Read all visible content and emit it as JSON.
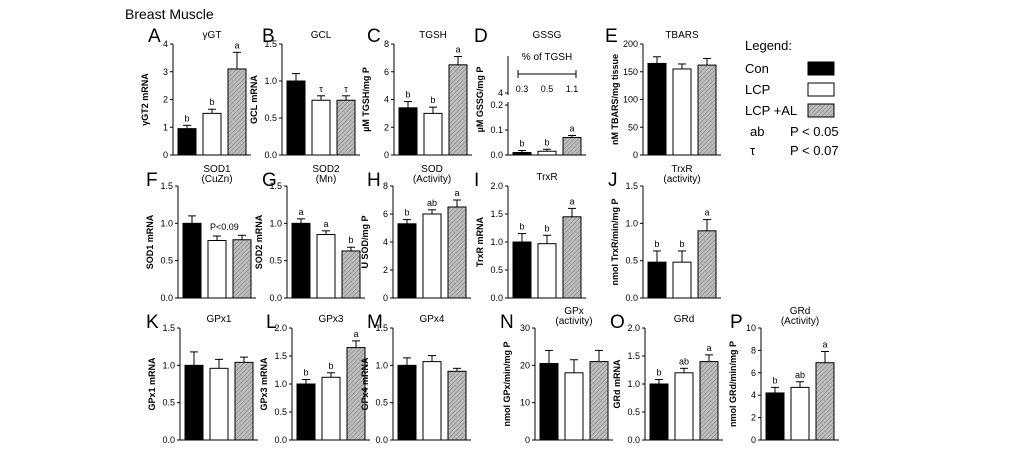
{
  "figure_title": "Breast Muscle",
  "legend": {
    "title": "Legend:",
    "entries": [
      {
        "label": "Con",
        "fill": "#000000"
      },
      {
        "label": "LCP",
        "fill": "#ffffff"
      },
      {
        "label": "LCP +AL",
        "fill": "#bdbdbd"
      }
    ],
    "significance": [
      {
        "symbol": "ab",
        "text": "P < 0.05"
      },
      {
        "symbol": "τ",
        "text": "P < 0.07"
      }
    ]
  },
  "chart_data": [
    {
      "id": "A",
      "type": "bar",
      "title": "γGT",
      "ylabel": "γGT2 mRNA",
      "ylim": [
        0,
        4
      ],
      "yticks": [
        "0",
        "1",
        "2",
        "3",
        "4"
      ],
      "categories": [
        "Con",
        "LCP",
        "LCP +AL"
      ],
      "values": [
        0.95,
        1.5,
        3.1
      ],
      "errors": [
        0.12,
        0.15,
        0.6
      ],
      "labels": [
        "b",
        "b",
        "a"
      ]
    },
    {
      "id": "B",
      "type": "bar",
      "title": "GCL",
      "ylabel": "GCL mRNA",
      "ylim": [
        0,
        1.5
      ],
      "yticks": [
        "0.0",
        "0.5",
        "1.0",
        "1.5"
      ],
      "categories": [
        "Con",
        "LCP",
        "LCP +AL"
      ],
      "values": [
        1.0,
        0.74,
        0.74
      ],
      "errors": [
        0.1,
        0.06,
        0.06
      ],
      "labels": [
        "",
        "τ",
        "τ"
      ]
    },
    {
      "id": "C",
      "type": "bar",
      "title": "TGSH",
      "ylabel": "µM TGSH/mg P",
      "ylim": [
        0,
        8
      ],
      "yticks": [
        "0",
        "2",
        "4",
        "6",
        "8"
      ],
      "categories": [
        "Con",
        "LCP",
        "LCP +AL"
      ],
      "values": [
        3.4,
        3.0,
        6.5
      ],
      "errors": [
        0.45,
        0.45,
        0.6
      ],
      "labels": [
        "b",
        "b",
        "a"
      ]
    },
    {
      "id": "D",
      "type": "bar",
      "title": "GSSG",
      "ylabel": "µM GSSG/mg P",
      "ylim": [
        0,
        5
      ],
      "yticks": [
        "0.0",
        "0.1",
        "0.2",
        "4"
      ],
      "categories": [
        "Con",
        "LCP",
        "LCP +AL"
      ],
      "values": [
        0.01,
        0.015,
        0.07
      ],
      "errors": [
        0.003,
        0.003,
        0.005
      ],
      "labels": [
        "b",
        "b",
        "a"
      ],
      "inset_label": "% of TGSH",
      "inset_values": [
        "0.3",
        "0.5",
        "1.1"
      ]
    },
    {
      "id": "E",
      "type": "bar",
      "title": "TBARS",
      "ylabel": "nM TBARS/mg tissue",
      "ylim": [
        0,
        200
      ],
      "yticks": [
        "0",
        "50",
        "100",
        "150",
        "200"
      ],
      "categories": [
        "Con",
        "LCP",
        "LCP +AL"
      ],
      "values": [
        165,
        155,
        162
      ],
      "errors": [
        12,
        9,
        12
      ],
      "labels": [
        "",
        "",
        ""
      ]
    },
    {
      "id": "F",
      "type": "bar",
      "title": "SOD1\n(CuZn)",
      "ylabel": "SOD1 mRNA",
      "ylim": [
        0,
        1.5
      ],
      "yticks": [
        "0.0",
        "0.5",
        "1.0",
        "1.5"
      ],
      "categories": [
        "Con",
        "LCP",
        "LCP +AL"
      ],
      "values": [
        1.0,
        0.77,
        0.78
      ],
      "errors": [
        0.1,
        0.06,
        0.06
      ],
      "labels": [
        "",
        "",
        ""
      ],
      "annotation": "P<0.09"
    },
    {
      "id": "G",
      "type": "bar",
      "title": "SOD2\n(Mn)",
      "ylabel": "SOD2 mRNA",
      "ylim": [
        0,
        1.5
      ],
      "yticks": [
        "0.0",
        "0.5",
        "1.0",
        "1.5"
      ],
      "categories": [
        "Con",
        "LCP",
        "LCP +AL"
      ],
      "values": [
        1.0,
        0.85,
        0.63
      ],
      "errors": [
        0.06,
        0.05,
        0.05
      ],
      "labels": [
        "a",
        "a",
        "b"
      ]
    },
    {
      "id": "H",
      "type": "bar",
      "title": "SOD\n(Activity)",
      "ylabel": "U SOD/mg P",
      "ylim": [
        0,
        8
      ],
      "yticks": [
        "0",
        "2",
        "4",
        "6",
        "8"
      ],
      "categories": [
        "Con",
        "LCP",
        "LCP +AL"
      ],
      "values": [
        5.3,
        6.0,
        6.5
      ],
      "errors": [
        0.3,
        0.3,
        0.5
      ],
      "labels": [
        "b",
        "ab",
        "a"
      ]
    },
    {
      "id": "I",
      "type": "bar",
      "title": "TrxR",
      "ylabel": "TrxR mRNA",
      "ylim": [
        0,
        2.0
      ],
      "yticks": [
        "0.0",
        "0.5",
        "1.0",
        "1.5",
        "2.0"
      ],
      "categories": [
        "Con",
        "LCP",
        "LCP +AL"
      ],
      "values": [
        1.0,
        0.97,
        1.45
      ],
      "errors": [
        0.15,
        0.15,
        0.15
      ],
      "labels": [
        "b",
        "b",
        "a"
      ]
    },
    {
      "id": "J",
      "type": "bar",
      "title": "TrxR\n(activity)",
      "ylabel": "nmol TrxR/min/mg P",
      "ylim": [
        0,
        1.5
      ],
      "yticks": [
        "0.0",
        "0.5",
        "1.0",
        "1.5"
      ],
      "categories": [
        "Con",
        "LCP",
        "LCP +AL"
      ],
      "values": [
        0.48,
        0.48,
        0.9
      ],
      "errors": [
        0.15,
        0.15,
        0.15
      ],
      "labels": [
        "b",
        "b",
        "a"
      ]
    },
    {
      "id": "K",
      "type": "bar",
      "title": "GPx1",
      "ylabel": "GPx1 mRNA",
      "ylim": [
        0,
        1.5
      ],
      "yticks": [
        "0.0",
        "0.5",
        "1.0",
        "1.5"
      ],
      "categories": [
        "Con",
        "LCP",
        "LCP +AL"
      ],
      "values": [
        1.0,
        0.96,
        1.04
      ],
      "errors": [
        0.18,
        0.12,
        0.07
      ],
      "labels": [
        "",
        "",
        ""
      ]
    },
    {
      "id": "L",
      "type": "bar",
      "title": "GPx3",
      "ylabel": "GPx3 mRNA",
      "ylim": [
        0,
        2.0
      ],
      "yticks": [
        "0.0",
        "0.5",
        "1.0",
        "1.5",
        "2.0"
      ],
      "categories": [
        "Con",
        "LCP",
        "LCP +AL"
      ],
      "values": [
        1.0,
        1.12,
        1.65
      ],
      "errors": [
        0.08,
        0.08,
        0.12
      ],
      "labels": [
        "b",
        "b",
        "a"
      ]
    },
    {
      "id": "M",
      "type": "bar",
      "title": "GPx4",
      "ylabel": "GPx4 mRNA",
      "ylim": [
        0,
        1.5
      ],
      "yticks": [
        "0.0",
        "0.5",
        "1.0",
        "1.5"
      ],
      "categories": [
        "Con",
        "LCP",
        "LCP +AL"
      ],
      "values": [
        1.0,
        1.05,
        0.92
      ],
      "errors": [
        0.1,
        0.08,
        0.04
      ],
      "labels": [
        "",
        "",
        ""
      ]
    },
    {
      "id": "N",
      "type": "bar",
      "title": "GPx\n(activity)",
      "ylabel": "nmol GPx/min/mg P",
      "ylim": [
        0,
        30
      ],
      "yticks": [
        "0",
        "10",
        "20",
        "30"
      ],
      "categories": [
        "Con",
        "LCP",
        "LCP +AL"
      ],
      "values": [
        20.5,
        18.0,
        21.0
      ],
      "errors": [
        3.5,
        3.5,
        3.0
      ],
      "labels": [
        "",
        "",
        ""
      ]
    },
    {
      "id": "O",
      "type": "bar",
      "title": "GRd",
      "ylabel": "GRd mRNA",
      "ylim": [
        0,
        2.0
      ],
      "yticks": [
        "0.0",
        "0.5",
        "1.0",
        "1.5",
        "2.0"
      ],
      "categories": [
        "Con",
        "LCP",
        "LCP +AL"
      ],
      "values": [
        1.0,
        1.2,
        1.4
      ],
      "errors": [
        0.08,
        0.08,
        0.12
      ],
      "labels": [
        "b",
        "ab",
        "a"
      ]
    },
    {
      "id": "P",
      "type": "bar",
      "title": "GRd\n(Activity)",
      "ylabel": "nmol GRd/min/mg P",
      "ylim": [
        0,
        10
      ],
      "yticks": [
        "0",
        "2",
        "4",
        "6",
        "8",
        "10"
      ],
      "categories": [
        "Con",
        "LCP",
        "LCP +AL"
      ],
      "values": [
        4.2,
        4.7,
        6.9
      ],
      "errors": [
        0.5,
        0.5,
        1.0
      ],
      "labels": [
        "b",
        "ab",
        "a"
      ]
    }
  ]
}
